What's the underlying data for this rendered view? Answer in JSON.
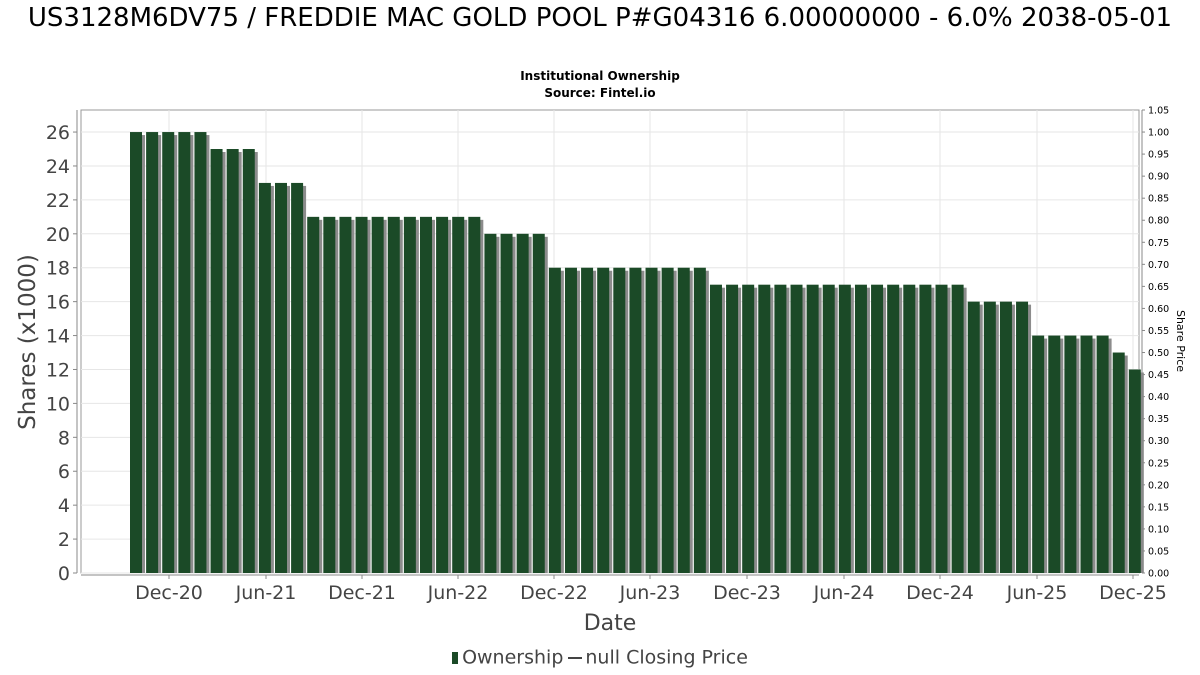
{
  "header": {
    "title": "US3128M6DV75 / FREDDIE MAC GOLD POOL P#G04316 6.00000000 - 6.0% 2038-05-01",
    "subtitle1": "Institutional Ownership",
    "subtitle2": "Source: Fintel.io"
  },
  "legend": {
    "ownership": "Ownership",
    "price": "null Closing Price"
  },
  "colors": {
    "bar": "#1b4a27",
    "bar_shadow": "#8c8c8c",
    "grid": "#e6e6e6"
  },
  "chart_data": {
    "type": "bar",
    "title": "US3128M6DV75 / FREDDIE MAC GOLD POOL P#G04316 6.00000000 - 6.0% 2038-05-01",
    "xlabel": "Date",
    "ylabel": "Shares (x1000)",
    "y2label": "Share Price",
    "x_ticks": [
      "Dec-20",
      "Jun-21",
      "Dec-21",
      "Jun-22",
      "Dec-22",
      "Jun-23",
      "Dec-23",
      "Jun-24",
      "Dec-24",
      "Jun-25",
      "Dec-25"
    ],
    "ylim": [
      0,
      27.3
    ],
    "y_ticks": [
      0,
      2,
      4,
      6,
      8,
      10,
      12,
      14,
      16,
      18,
      20,
      22,
      24,
      26
    ],
    "y2lim": [
      0,
      1.05
    ],
    "y2_ticks": [
      "0.00",
      "0.05",
      "0.10",
      "0.15",
      "0.20",
      "0.25",
      "0.30",
      "0.35",
      "0.40",
      "0.45",
      "0.50",
      "0.55",
      "0.60",
      "0.65",
      "0.70",
      "0.75",
      "0.80",
      "0.85",
      "0.90",
      "0.95",
      "1.00",
      "1.05"
    ],
    "grid": true,
    "series": [
      {
        "name": "Ownership",
        "values": [
          26,
          26,
          26,
          26,
          26,
          25,
          25,
          25,
          23,
          23,
          23,
          21,
          21,
          21,
          21,
          21,
          21,
          21,
          21,
          21,
          21,
          21,
          20,
          20,
          20,
          20,
          18,
          18,
          18,
          18,
          18,
          18,
          18,
          18,
          18,
          18,
          17,
          17,
          17,
          17,
          17,
          17,
          17,
          17,
          17,
          17,
          17,
          17,
          17,
          17,
          17,
          17,
          16,
          16,
          16,
          16,
          14,
          14,
          14,
          14,
          14,
          13,
          12
        ]
      }
    ]
  }
}
